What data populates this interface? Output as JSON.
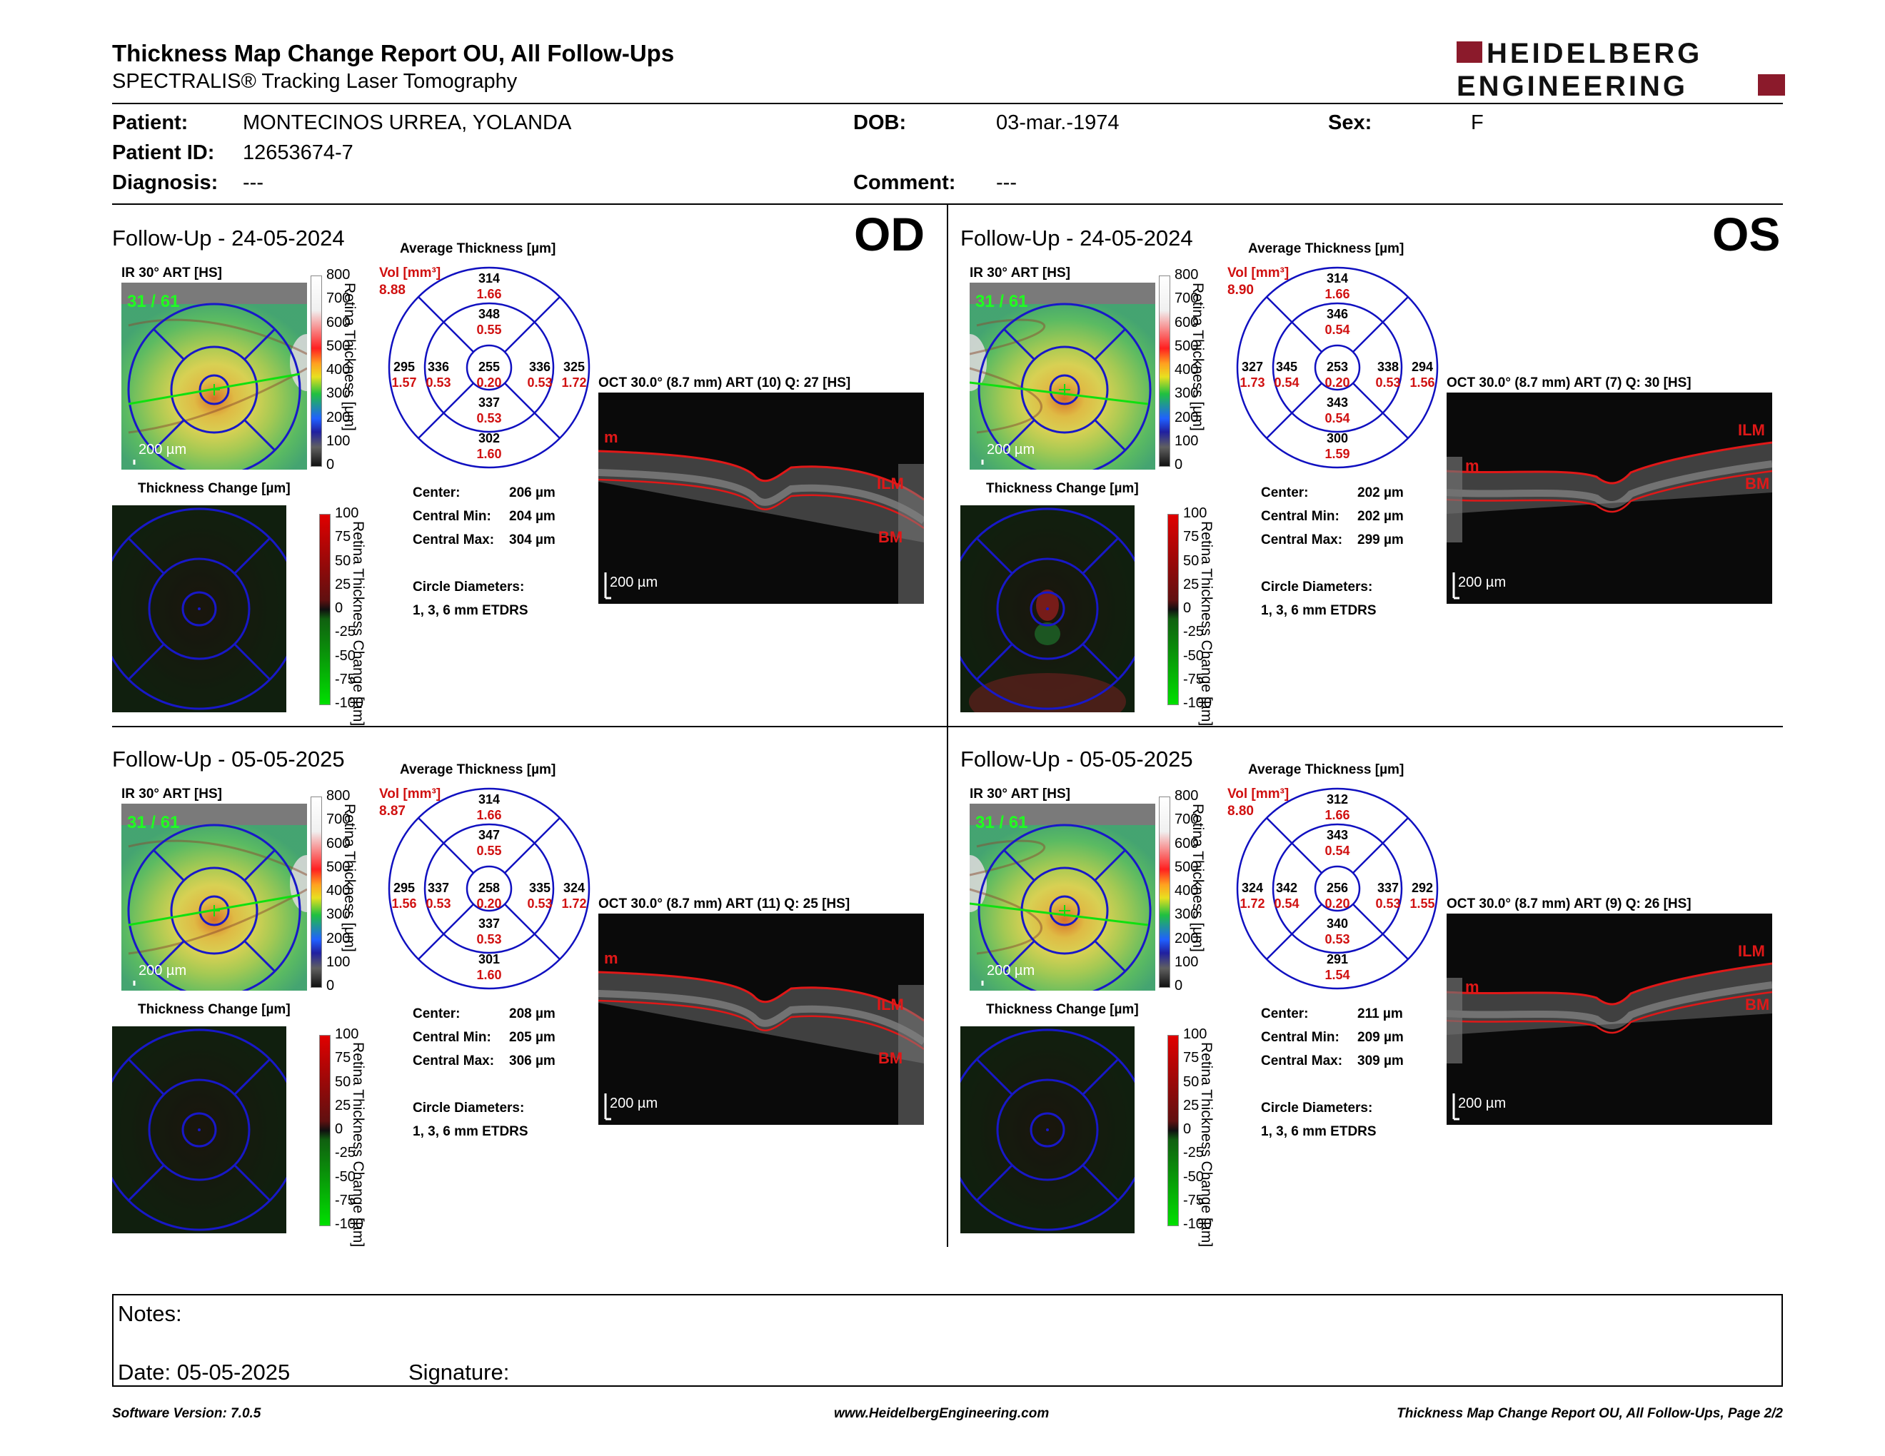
{
  "header": {
    "title": "Thickness Map Change Report OU, All Follow-Ups",
    "subtitle": "SPECTRALIS® Tracking Laser Tomography",
    "logo_line1": "HEIDELBERG",
    "logo_line2": "ENGINEERING"
  },
  "patient": {
    "patient_label": "Patient:",
    "patient_value": "MONTECINOS URREA, YOLANDA",
    "id_label": "Patient ID:",
    "id_value": "12653674-7",
    "diagnosis_label": "Diagnosis:",
    "diagnosis_value": "---",
    "dob_label": "DOB:",
    "dob_value": "03-mar.-1974",
    "comment_label": "Comment:",
    "comment_value": "---",
    "sex_label": "Sex:",
    "sex_value": "F"
  },
  "common": {
    "avg_title": "Average Thickness [µm]",
    "vol_label": "Vol [mm³]",
    "ir_label": "IR 30° ART [HS]",
    "change_title": "Thickness Change [µm]",
    "scale_label": "200 µm",
    "center_label": "Center:",
    "cmin_label": "Central Min:",
    "cmax_label": "Central Max:",
    "circle_label": "Circle Diameters:",
    "circle_value": "1, 3, 6 mm ETDRS",
    "thick_axis": "Retina Thickness [µm]",
    "change_axis": "Retina Thickness Change [µm]",
    "thick_ticks": [
      "800",
      "700",
      "600",
      "500",
      "400",
      "300",
      "200",
      "100",
      "0"
    ],
    "change_ticks": [
      "100",
      "75",
      "50",
      "25",
      "0",
      "-25",
      "-50",
      "-75",
      "-100"
    ],
    "ilm": "ILM",
    "bm": "BM",
    "m": "m",
    "frames": "31 / 61"
  },
  "panels": [
    {
      "eye": "OD",
      "followup": "Follow-Up - 24-05-2024",
      "vol": "8.88",
      "oct_label": "OCT 30.0° (8.7 mm) ART (10) Q: 27 [HS]",
      "center": "206 µm",
      "cmin": "204 µm",
      "cmax": "304 µm",
      "grid": {
        "outer_sup": "314",
        "outer_sup_v": "1.66",
        "inner_sup": "348",
        "inner_sup_v": "0.55",
        "outer_t": "295",
        "outer_t_v": "1.57",
        "inner_t": "336",
        "inner_t_v": "0.53",
        "center": "255",
        "center_v": "0.20",
        "inner_n": "336",
        "inner_n_v": "0.53",
        "outer_n": "325",
        "outer_n_v": "1.72",
        "inner_inf": "337",
        "inner_inf_v": "0.53",
        "outer_inf": "302",
        "outer_inf_v": "1.60"
      }
    },
    {
      "eye": "OS",
      "followup": "Follow-Up - 24-05-2024",
      "vol": "8.90",
      "oct_label": "OCT 30.0° (8.7 mm) ART (7) Q: 30 [HS]",
      "center": "202 µm",
      "cmin": "202 µm",
      "cmax": "299 µm",
      "grid": {
        "outer_sup": "314",
        "outer_sup_v": "1.66",
        "inner_sup": "346",
        "inner_sup_v": "0.54",
        "outer_t": "327",
        "outer_t_v": "1.73",
        "inner_t": "345",
        "inner_t_v": "0.54",
        "center": "253",
        "center_v": "0.20",
        "inner_n": "338",
        "inner_n_v": "0.53",
        "outer_n": "294",
        "outer_n_v": "1.56",
        "inner_inf": "343",
        "inner_inf_v": "0.54",
        "outer_inf": "300",
        "outer_inf_v": "1.59"
      }
    },
    {
      "eye": "",
      "followup": "Follow-Up - 05-05-2025",
      "vol": "8.87",
      "oct_label": "OCT 30.0° (8.7 mm) ART (11) Q: 25 [HS]",
      "center": "208 µm",
      "cmin": "205 µm",
      "cmax": "306 µm",
      "grid": {
        "outer_sup": "314",
        "outer_sup_v": "1.66",
        "inner_sup": "347",
        "inner_sup_v": "0.55",
        "outer_t": "295",
        "outer_t_v": "1.56",
        "inner_t": "337",
        "inner_t_v": "0.53",
        "center": "258",
        "center_v": "0.20",
        "inner_n": "335",
        "inner_n_v": "0.53",
        "outer_n": "324",
        "outer_n_v": "1.72",
        "inner_inf": "337",
        "inner_inf_v": "0.53",
        "outer_inf": "301",
        "outer_inf_v": "1.60"
      }
    },
    {
      "eye": "",
      "followup": "Follow-Up - 05-05-2025",
      "vol": "8.80",
      "oct_label": "OCT 30.0° (8.7 mm) ART (9) Q: 26 [HS]",
      "center": "211 µm",
      "cmin": "209 µm",
      "cmax": "309 µm",
      "grid": {
        "outer_sup": "312",
        "outer_sup_v": "1.66",
        "inner_sup": "343",
        "inner_sup_v": "0.54",
        "outer_t": "324",
        "outer_t_v": "1.72",
        "inner_t": "342",
        "inner_t_v": "0.54",
        "center": "256",
        "center_v": "0.20",
        "inner_n": "337",
        "inner_n_v": "0.53",
        "outer_n": "292",
        "outer_n_v": "1.55",
        "inner_inf": "340",
        "inner_inf_v": "0.53",
        "outer_inf": "291",
        "outer_inf_v": "1.54"
      }
    }
  ],
  "notes": {
    "notes_label": "Notes:",
    "date_label": "Date: 05-05-2025",
    "signature_label": "Signature:"
  },
  "footer": {
    "left": "Software Version: 7.0.5",
    "center": "www.HeidelbergEngineering.com",
    "right": "Thickness Map Change Report OU, All Follow-Ups, Page 2/2"
  },
  "colors": {
    "accent_red": "#8b1a2b",
    "value_red": "#d01010",
    "grid_blue": "#0000c8"
  }
}
